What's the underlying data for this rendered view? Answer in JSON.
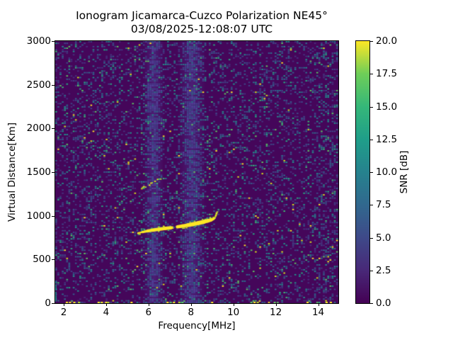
{
  "chart_data": {
    "type": "heatmap",
    "title": "Ionogram Jicamarca-Cuzco Polarization NE45°",
    "subtitle": "03/08/2025-12:08:07 UTC",
    "xlabel": "Frequency[MHz]",
    "ylabel": "Virtual Distance[Km]",
    "colorbar_label": "SNR [dB]",
    "colormap": "viridis",
    "xlim": [
      1.6,
      14.95
    ],
    "ylim": [
      0,
      3000
    ],
    "snr_lim": [
      0,
      20
    ],
    "xticks": [
      2,
      4,
      6,
      8,
      10,
      12,
      14
    ],
    "yticks": [
      0,
      500,
      1000,
      1500,
      2000,
      2500,
      3000
    ],
    "colorbar_ticks": [
      "0.0",
      "2.5",
      "5.0",
      "7.5",
      "10.0",
      "12.5",
      "15.0",
      "17.5",
      "20.0"
    ],
    "viridis_stops": [
      "#440154",
      "#482878",
      "#3e4989",
      "#31688e",
      "#26828e",
      "#1f9e89",
      "#35b779",
      "#6ece58",
      "#fde725"
    ],
    "background_color": "#45065a",
    "noise": {
      "seed": 1337,
      "cell_w": 3.1,
      "cell_h": 2.3,
      "density": 0.24,
      "right_edge_boost": {
        "from_mhz": 13.85,
        "density": 0.36
      },
      "palette": [
        {
          "color": "#46327e",
          "w": 0.24
        },
        {
          "color": "#3f4889",
          "w": 0.22
        },
        {
          "color": "#355e8d",
          "w": 0.17
        },
        {
          "color": "#2c728e",
          "w": 0.14
        },
        {
          "color": "#21918c",
          "w": 0.11
        },
        {
          "color": "#27ad81",
          "w": 0.05
        },
        {
          "color": "#3dbc74",
          "w": 0.03
        },
        {
          "color": "#5ec962",
          "w": 0.02
        },
        {
          "color": "#d8e219",
          "w": 0.01
        },
        {
          "color": "#fde725",
          "w": 0.01
        }
      ]
    },
    "band_palette": [
      {
        "color": "#514a9e",
        "w": 0.35
      },
      {
        "color": "#474090",
        "w": 0.3
      },
      {
        "color": "#3e4989",
        "w": 0.2
      },
      {
        "color": "#35608d",
        "w": 0.1
      },
      {
        "color": "#2c728e",
        "w": 0.05
      }
    ],
    "rfi_bands": [
      {
        "center_mhz": 6.25,
        "width_mhz": 0.5
      },
      {
        "center_mhz": 8.05,
        "width_mhz": 0.65
      }
    ],
    "echo_trace": {
      "snr_db": 20,
      "points_mhz_km": [
        [
          5.5,
          801
        ],
        [
          5.72,
          814
        ],
        [
          5.95,
          826
        ],
        [
          6.2,
          836
        ],
        [
          6.5,
          847
        ],
        [
          6.8,
          856
        ],
        [
          7.05,
          862
        ],
        [
          7.14,
          865
        ],
        [
          7.36,
          874
        ],
        [
          7.6,
          883
        ],
        [
          7.85,
          893
        ],
        [
          8.1,
          904
        ],
        [
          8.35,
          917
        ],
        [
          8.6,
          931
        ],
        [
          8.8,
          943
        ],
        [
          8.95,
          954
        ],
        [
          9.05,
          963
        ],
        [
          9.12,
          972
        ]
      ],
      "gap_mhz": [
        7.13,
        7.37
      ],
      "width_profile": [
        [
          5.45,
          1.6
        ],
        [
          5.8,
          3.2
        ],
        [
          6.2,
          4.6
        ],
        [
          6.9,
          4.8
        ],
        [
          7.1,
          3.6
        ],
        [
          7.45,
          4.6
        ],
        [
          8.0,
          5.4
        ],
        [
          8.55,
          5.8
        ],
        [
          8.85,
          5.2
        ],
        [
          9.0,
          3.8
        ],
        [
          9.12,
          2.2
        ]
      ],
      "hook_points_mhz_km": [
        [
          9.14,
          985
        ],
        [
          9.17,
          1000
        ],
        [
          9.19,
          1013
        ],
        [
          9.21,
          1028
        ],
        [
          9.24,
          1043
        ]
      ]
    },
    "trace_colors": {
      "core": "#fde725",
      "fringe": [
        {
          "color": "#a0da39",
          "w": 0.4
        },
        {
          "color": "#4ac16d",
          "w": 0.3
        },
        {
          "color": "#d8e219",
          "w": 0.3
        }
      ]
    },
    "second_trace": {
      "points_mhz_km": [
        [
          5.68,
          1318
        ],
        [
          5.85,
          1335
        ],
        [
          6.05,
          1357
        ],
        [
          6.25,
          1383
        ],
        [
          6.45,
          1410
        ],
        [
          6.63,
          1432
        ]
      ],
      "palette": [
        {
          "color": "#d8e219",
          "w": 0.3
        },
        {
          "color": "#9fda3a",
          "w": 0.2
        },
        {
          "color": "#5ec962",
          "w": 0.2
        },
        {
          "color": "#35b779",
          "w": 0.15
        },
        {
          "color": "#fde725",
          "w": 0.15
        }
      ]
    },
    "ground_clutter": {
      "freqs_mhz": [
        2.15,
        2.3,
        2.5,
        2.72,
        3.65,
        3.8,
        4.0,
        4.1,
        5.2,
        6.9,
        7.05,
        7.2,
        7.45,
        7.6,
        9.0,
        10.85,
        11.0,
        11.15,
        11.95,
        13.5,
        14.4,
        14.6
      ],
      "palette": [
        {
          "color": "#fde725",
          "w": 0.7
        },
        {
          "color": "#b5de2b",
          "w": 0.15
        },
        {
          "color": "#5ec962",
          "w": 0.15
        }
      ]
    },
    "left_edge_stripe": {
      "from_km": 0,
      "to_km": 260,
      "color": "#21918c"
    }
  }
}
